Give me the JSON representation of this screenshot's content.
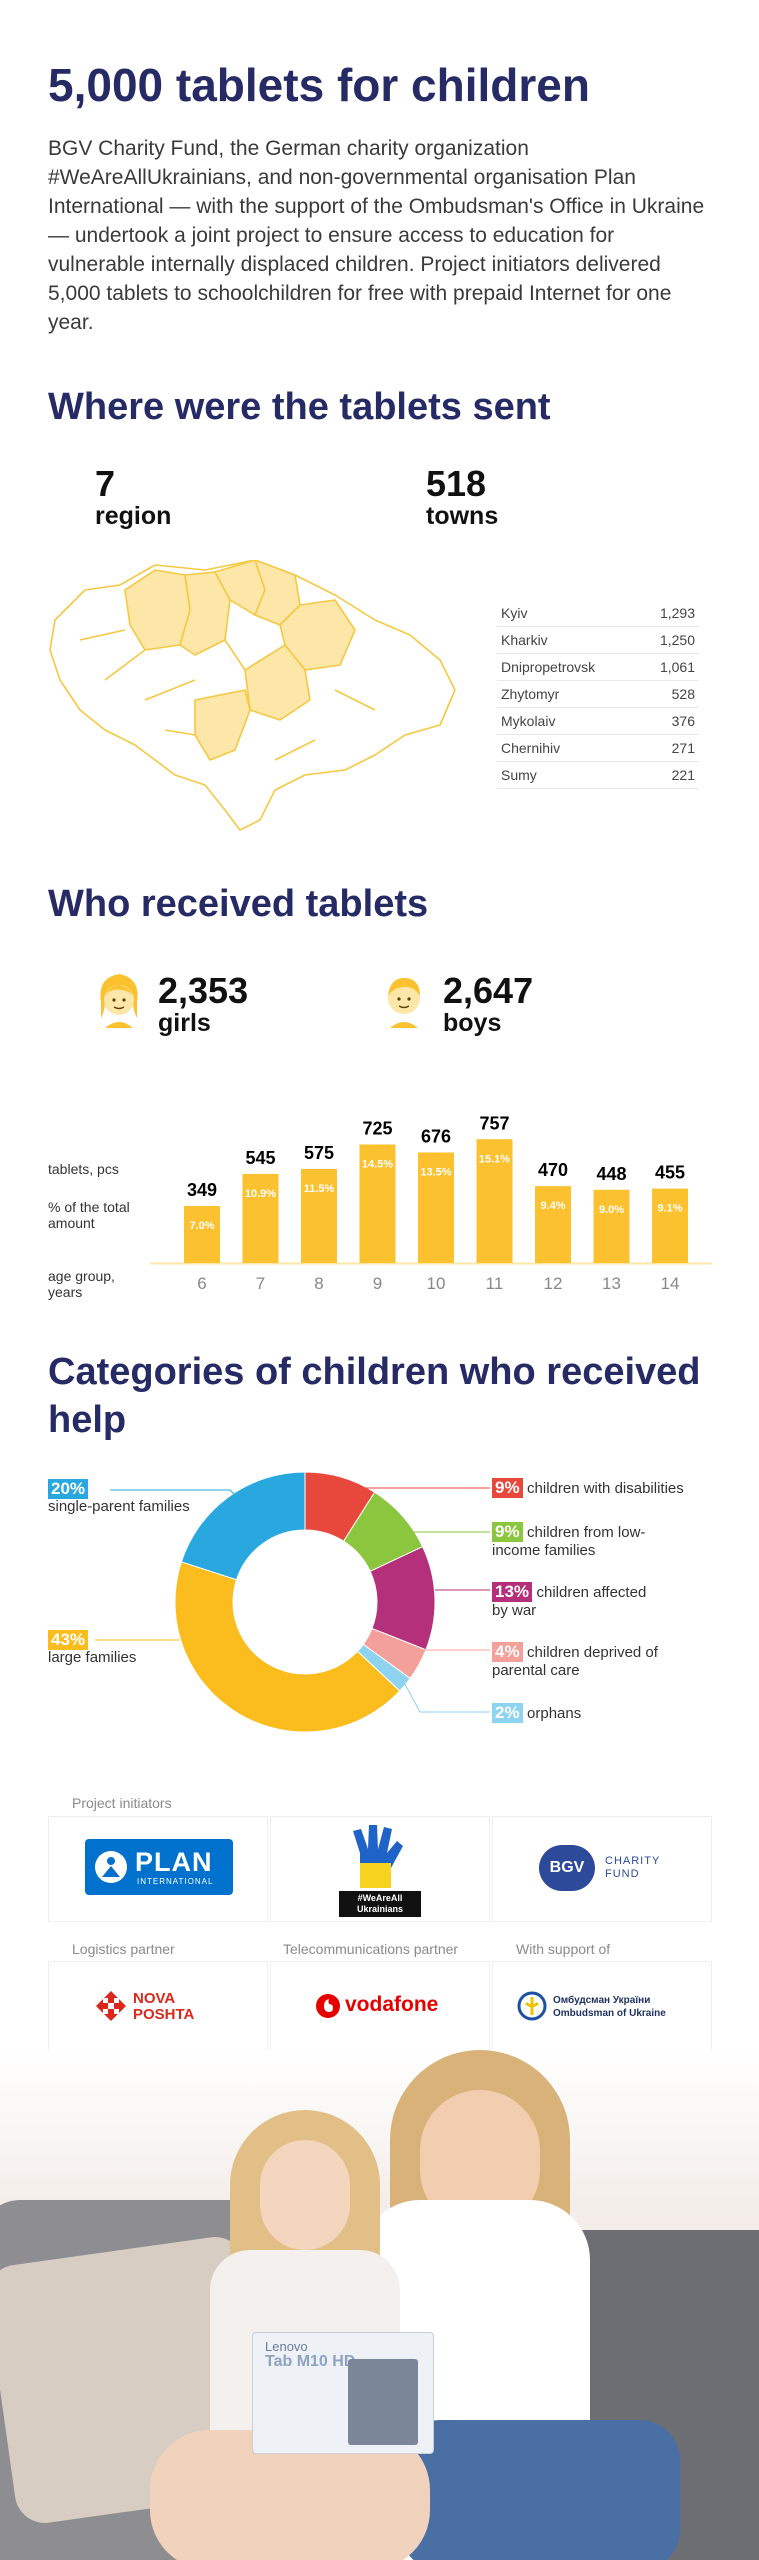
{
  "title": "5,000 tablets for children",
  "intro": "BGV Charity Fund, the German charity organization #WeAreAllUkrainians, and non-governmental organisation Plan International — with the support of the Ombudsman's Office in Ukraine — undertook a joint project to ensure access to education for vulnerable internally displaced children. Project initiators delivered 5,000 tablets to schoolchildren for free with prepaid Internet for one year.",
  "where": {
    "heading": "Where were the tablets sent",
    "stats": [
      {
        "num": "7",
        "label": "region"
      },
      {
        "num": "518",
        "label": "towns"
      }
    ],
    "cities": [
      {
        "name": "Kyiv",
        "value": "1,293"
      },
      {
        "name": "Kharkiv",
        "value": "1,250"
      },
      {
        "name": "Dnipropetrovsk",
        "value": "1,061"
      },
      {
        "name": "Zhytomyr",
        "value": "528"
      },
      {
        "name": "Mykolaiv",
        "value": "376"
      },
      {
        "name": "Chernihiv",
        "value": "271"
      },
      {
        "name": "Sumy",
        "value": "221"
      }
    ]
  },
  "who": {
    "heading": "Who received tablets",
    "girls": {
      "num": "2,353",
      "label": "girls"
    },
    "boys": {
      "num": "2,647",
      "label": "boys"
    },
    "row_labels": {
      "tablets": "tablets, pcs",
      "percent": "% of the total amount",
      "age": "age group, years"
    }
  },
  "categories": {
    "heading": "Categories of children who received help",
    "items": [
      {
        "pct": "20%",
        "label": "single-parent families"
      },
      {
        "pct": "43%",
        "label": "large families"
      },
      {
        "pct": "9%",
        "label": "children with disabilities"
      },
      {
        "pct": "9%",
        "label": "children from low-income families"
      },
      {
        "pct": "13%",
        "label": "children affected by war"
      },
      {
        "pct": "4%",
        "label": "children deprived of parental care"
      },
      {
        "pct": "2%",
        "label": "orphans"
      }
    ]
  },
  "partners": {
    "initiators_caption": "Project initiators",
    "logistics_caption": "Logistics partner",
    "telecom_caption": "Telecommunications partner",
    "support_caption": "With support of",
    "plan_logo": "PLAN",
    "plan_sub": "INTERNATIONAL",
    "wearall_logo": "#WeAreAll Ukrainians",
    "bgv_logo": "BGV",
    "bgv_text": "CHARITY FUND",
    "nova_logo": "NOVA POSHTA",
    "vodafone_logo": "vodafone",
    "ombudsman_line1": "Омбудсман України",
    "ombudsman_line2": "Ombudsman of Ukraine"
  },
  "photo": {
    "tablet_brand": "Lenovo",
    "tablet_model": "Tab M10 HD"
  },
  "colors": {
    "navy": "#262b66",
    "bar": "#fbc12e",
    "region": "#fde7a8",
    "cat_single": "#29a8e0",
    "cat_large": "#fbbc1e",
    "cat_disab": "#e8473c",
    "cat_low": "#8cc63f",
    "cat_war": "#b5307a",
    "cat_care": "#f4a09a",
    "cat_orph": "#8ed3ef"
  },
  "chart_data": [
    {
      "type": "bar",
      "categories": [
        "6",
        "7",
        "8",
        "9",
        "10",
        "11",
        "12",
        "13",
        "14"
      ],
      "values": [
        349,
        545,
        575,
        725,
        676,
        757,
        470,
        448,
        455
      ],
      "value_labels": [
        "349",
        "545",
        "575",
        "725",
        "676",
        "757",
        "470",
        "448",
        "455"
      ],
      "percent_labels": [
        "7.0%",
        "10.9%",
        "11.5%",
        "14.5%",
        "13.5%",
        "15.1%",
        "9.4%",
        "9.0%",
        "9.1%"
      ],
      "xlabel": "age group, years",
      "ylabel": "tablets, pcs",
      "ylim": [
        0,
        800
      ]
    },
    {
      "type": "pie",
      "donut": true,
      "labels": [
        "children with disabilities",
        "children from low-income families",
        "children affected by war",
        "children deprived of parental care",
        "orphans",
        "large families",
        "single-parent families"
      ],
      "values": [
        9,
        9,
        13,
        4,
        2,
        43,
        20
      ]
    }
  ]
}
